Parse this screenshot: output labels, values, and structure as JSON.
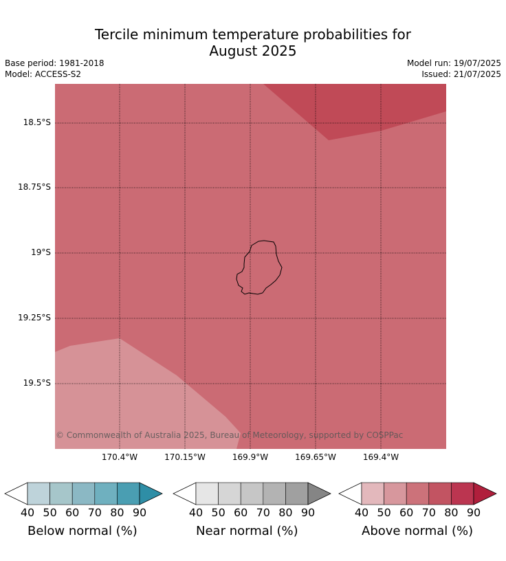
{
  "title_line1": "Tercile minimum temperature probabilities for",
  "title_line2": "August 2025",
  "base_period": "Base period: 1981-2018",
  "model": "Model: ACCESS-S2",
  "model_run": "Model run: 19/07/2025",
  "issued": "Issued: 21/07/2025",
  "copyright": "© Commonwealth of Australia 2025, Bureau of Meteorology, supported by COSPPac",
  "map": {
    "lat_labels": [
      "18.5°S",
      "18.75°S",
      "19°S",
      "19.25°S",
      "19.5°S"
    ],
    "lon_labels": [
      "170.4°W",
      "170.15°W",
      "169.9°W",
      "169.65°W",
      "169.4°W"
    ],
    "colors": {
      "base": "#cb6b74",
      "darker": "#c04a57",
      "lighter": "#d69297",
      "coast": "#000000"
    }
  },
  "colorbars": [
    {
      "label": "Below normal (%)",
      "ticks": [
        "40",
        "50",
        "60",
        "70",
        "80",
        "90"
      ],
      "colors": [
        "#ffffff",
        "#bed3da",
        "#a6c6ca",
        "#8bb8c4",
        "#6fb0bf",
        "#4a9eb2",
        "#2e8ea6"
      ]
    },
    {
      "label": "Near normal (%)",
      "ticks": [
        "40",
        "50",
        "60",
        "70",
        "80",
        "90"
      ],
      "colors": [
        "#ffffff",
        "#e6e6e6",
        "#d6d6d6",
        "#c6c6c6",
        "#b3b3b3",
        "#a0a0a0",
        "#858585"
      ]
    },
    {
      "label": "Above normal (%)",
      "ticks": [
        "40",
        "50",
        "60",
        "70",
        "80",
        "90"
      ],
      "colors": [
        "#ffffff",
        "#e3b8bc",
        "#d7979d",
        "#cc727a",
        "#c25462",
        "#bb3550",
        "#b01f3c"
      ]
    }
  ]
}
